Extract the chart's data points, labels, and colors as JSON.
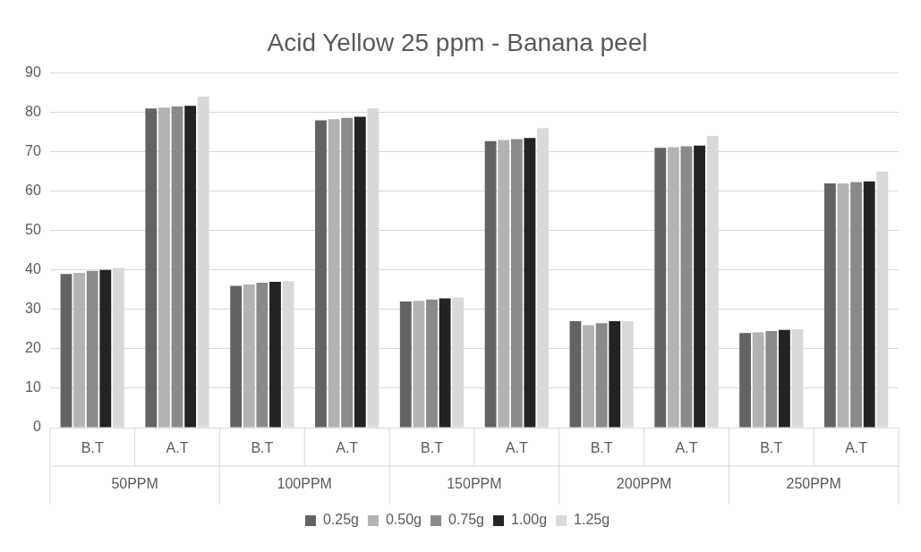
{
  "chart_data": {
    "type": "bar",
    "title": "Acid Yellow 25 ppm - Banana peel",
    "categories": [
      "B.T",
      "A.T",
      "B.T",
      "A.T",
      "B.T",
      "A.T",
      "B.T",
      "A.T",
      "B.T",
      "A.T"
    ],
    "annotations": [
      "50PPM",
      "100PPM",
      "150PPM",
      "200PPM",
      "250PPM"
    ],
    "series": [
      {
        "name": "0.25g",
        "color": "#636363",
        "values": [
          39,
          81,
          36,
          78,
          32,
          72.7,
          27,
          71,
          24,
          62
        ]
      },
      {
        "name": "0.50g",
        "color": "#b3b3b3",
        "values": [
          39.3,
          81.2,
          36.3,
          78.3,
          32.2,
          73,
          26,
          71.2,
          24.2,
          62
        ]
      },
      {
        "name": "0.75g",
        "color": "#8a8a8a",
        "values": [
          39.8,
          81.5,
          36.8,
          78.6,
          32.5,
          73.2,
          26.5,
          71.4,
          24.5,
          62.3
        ]
      },
      {
        "name": "1.00g",
        "color": "#232323",
        "values": [
          40,
          81.7,
          37,
          78.9,
          32.8,
          73.5,
          27,
          71.6,
          24.8,
          62.5
        ]
      },
      {
        "name": "1.25g",
        "color": "#d9d9d9",
        "values": [
          40.5,
          84,
          37.2,
          81,
          33,
          76,
          27,
          74,
          25,
          65
        ]
      }
    ],
    "ylim": [
      0,
      90
    ],
    "yticks": [
      0,
      10,
      20,
      30,
      40,
      50,
      60,
      70,
      80,
      90
    ],
    "grid": "y",
    "legend": "bottom"
  }
}
